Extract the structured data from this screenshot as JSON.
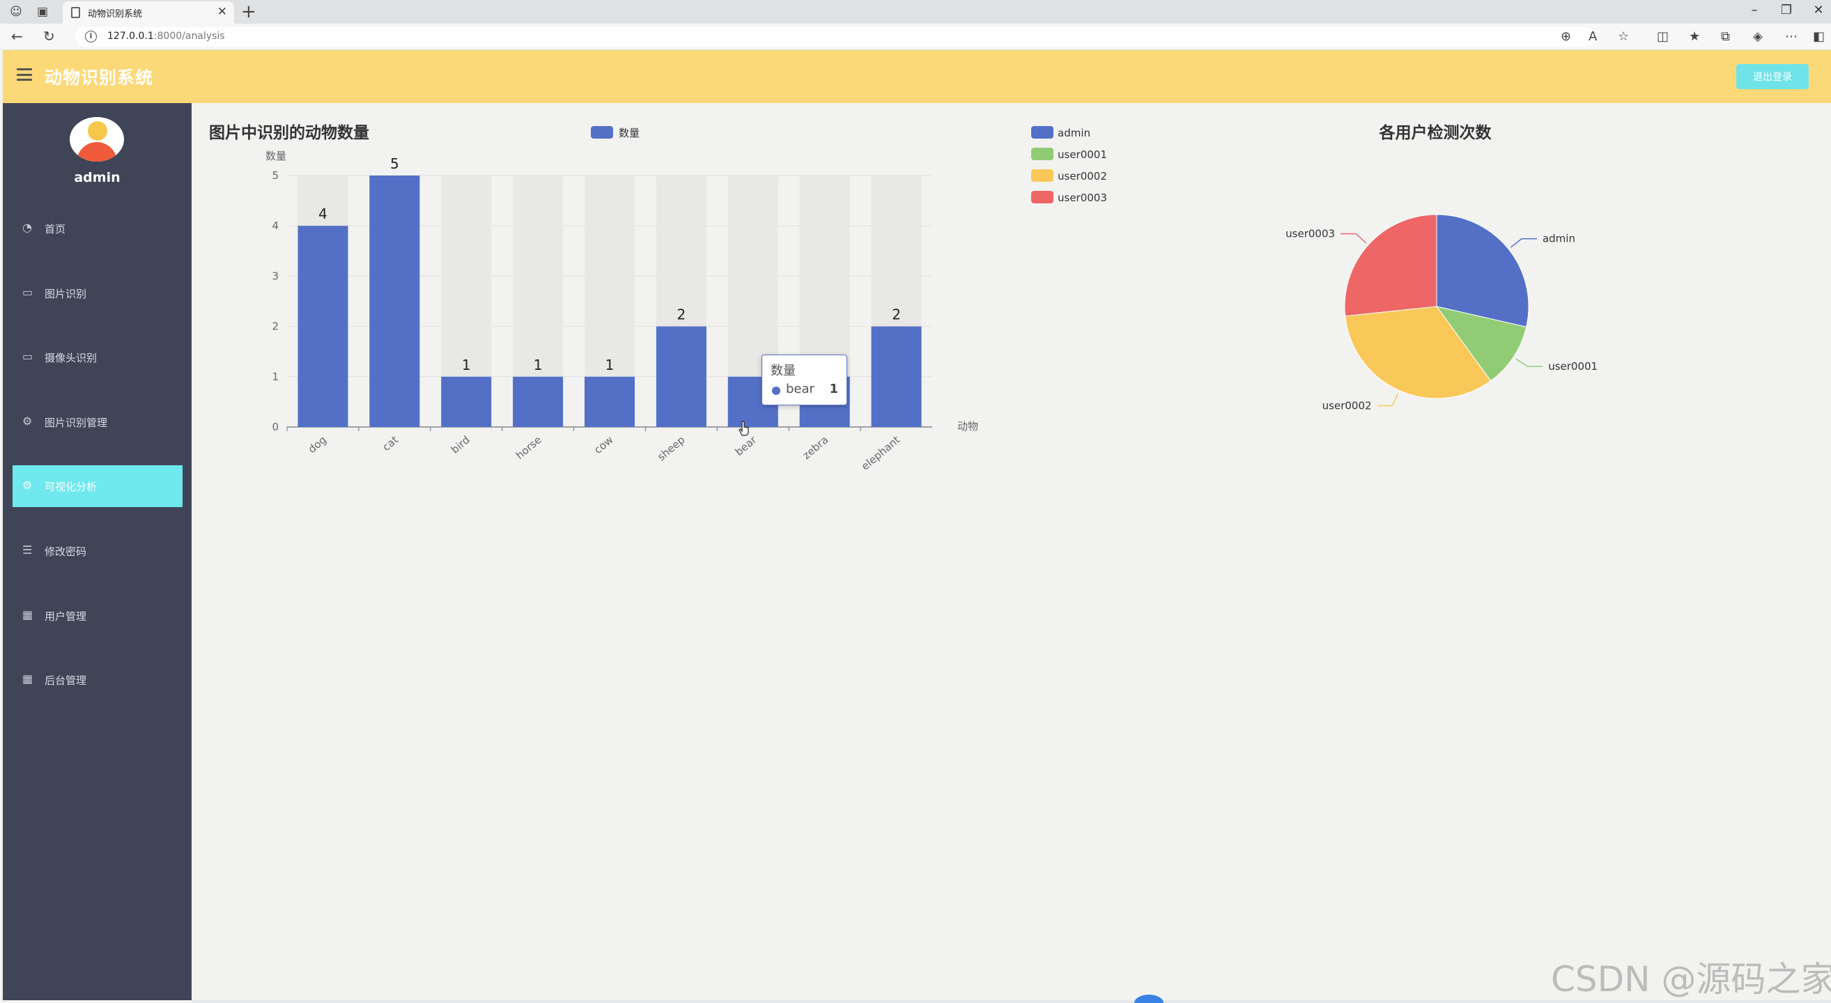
{
  "browser": {
    "tab_title": "动物识别系统",
    "url_host": "127.0.0.1",
    "url_rest": ":8000/analysis"
  },
  "header": {
    "app_title": "动物识别系统",
    "logout_label": "退出登录"
  },
  "sidebar": {
    "user_name": "admin",
    "items": [
      {
        "label": "首页",
        "icon": "dashboard-icon"
      },
      {
        "label": "图片识别",
        "icon": "monitor-icon"
      },
      {
        "label": "摄像头识别",
        "icon": "monitor-icon"
      },
      {
        "label": "图片识别管理",
        "icon": "gears-icon"
      },
      {
        "label": "可视化分析",
        "icon": "gears-icon"
      },
      {
        "label": "修改密码",
        "icon": "list-icon"
      },
      {
        "label": "用户管理",
        "icon": "grid-icon"
      },
      {
        "label": "后台管理",
        "icon": "grid-icon"
      }
    ],
    "active_index": 4
  },
  "tooltip": {
    "title": "数量",
    "name": "bear",
    "value": "1"
  },
  "watermark": "CSDN @源码之家",
  "colors": {
    "bar": "#5470c6",
    "bar_background": "#e8e8e6",
    "header": "#fbd978",
    "sidebar": "#3f4557",
    "active_menu": "#6fe8ee"
  },
  "chart_data": [
    {
      "type": "bar",
      "title": "图片中识别的动物数量",
      "legend": [
        "数量"
      ],
      "legend_position": "top",
      "xlabel": "动物",
      "ylabel": "数量",
      "categories": [
        "dog",
        "cat",
        "bird",
        "horse",
        "cow",
        "sheep",
        "bear",
        "zebra",
        "elephant"
      ],
      "series": [
        {
          "name": "数量",
          "values": [
            4,
            5,
            1,
            1,
            1,
            2,
            1,
            1,
            2
          ]
        }
      ],
      "ylim": [
        0,
        5
      ],
      "yticks": [
        0,
        1,
        2,
        3,
        4,
        5
      ],
      "data_labels": [
        "4",
        "5",
        "1",
        "1",
        "1",
        "2",
        "",
        "",
        "2"
      ],
      "grid": true
    },
    {
      "type": "pie",
      "title": "各用户检测次数",
      "legend_position": "top-left",
      "slices": [
        {
          "name": "admin",
          "value": 30,
          "color": "#5470c6"
        },
        {
          "name": "user0001",
          "value": 12,
          "color": "#91cc75"
        },
        {
          "name": "user0002",
          "value": 35,
          "color": "#fac858"
        },
        {
          "name": "user0003",
          "value": 28,
          "color": "#ee6666"
        }
      ]
    }
  ]
}
